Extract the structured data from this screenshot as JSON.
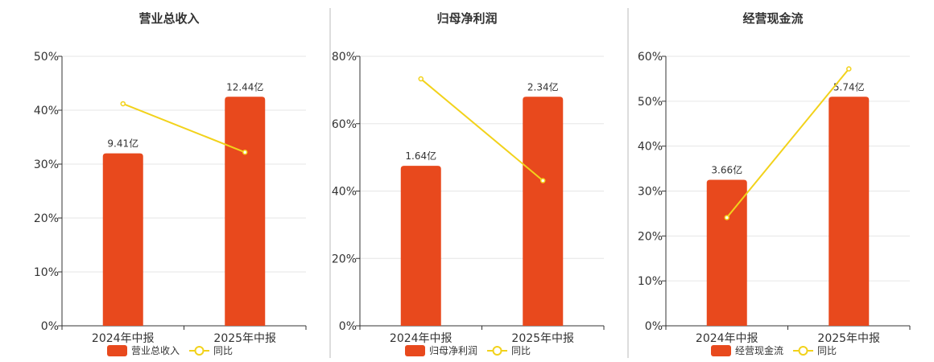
{
  "chart_data": [
    {
      "type": "bar",
      "title": "营业总收入",
      "categories": [
        "2024年中报",
        "2025年中报"
      ],
      "series": [
        {
          "name": "营业总收入",
          "type": "bar",
          "values": [
            32,
            42.5
          ],
          "labels": [
            "9.41亿",
            "12.44亿"
          ],
          "color": "#e8491d"
        },
        {
          "name": "同比",
          "type": "line",
          "values": [
            41.2,
            32.2
          ],
          "color": "#f2d21b"
        }
      ],
      "ylim": [
        0,
        50
      ],
      "yticks": [
        "0%",
        "10%",
        "20%",
        "30%",
        "40%",
        "50%"
      ],
      "grid": true,
      "legend": "bottom"
    },
    {
      "type": "bar",
      "title": "归母净利润",
      "categories": [
        "2024年中报",
        "2025年中报"
      ],
      "series": [
        {
          "name": "归母净利润",
          "type": "bar",
          "values": [
            47.5,
            68
          ],
          "labels": [
            "1.64亿",
            "2.34亿"
          ],
          "color": "#e8491d"
        },
        {
          "name": "同比",
          "type": "line",
          "values": [
            73.3,
            43.1
          ],
          "color": "#f2d21b"
        }
      ],
      "ylim": [
        0,
        80
      ],
      "yticks": [
        "0%",
        "20%",
        "40%",
        "60%",
        "80%"
      ],
      "grid": true,
      "legend": "bottom"
    },
    {
      "type": "bar",
      "title": "经营现金流",
      "categories": [
        "2024年中报",
        "2025年中报"
      ],
      "series": [
        {
          "name": "经营现金流",
          "type": "bar",
          "values": [
            32.5,
            51
          ],
          "labels": [
            "3.66亿",
            "5.74亿"
          ],
          "color": "#e8491d"
        },
        {
          "name": "同比",
          "type": "line",
          "values": [
            24.1,
            57.2
          ],
          "color": "#f2d21b"
        }
      ],
      "ylim": [
        0,
        60
      ],
      "yticks": [
        "0%",
        "10%",
        "20%",
        "30%",
        "40%",
        "50%",
        "60%"
      ],
      "grid": true,
      "legend": "bottom"
    }
  ]
}
